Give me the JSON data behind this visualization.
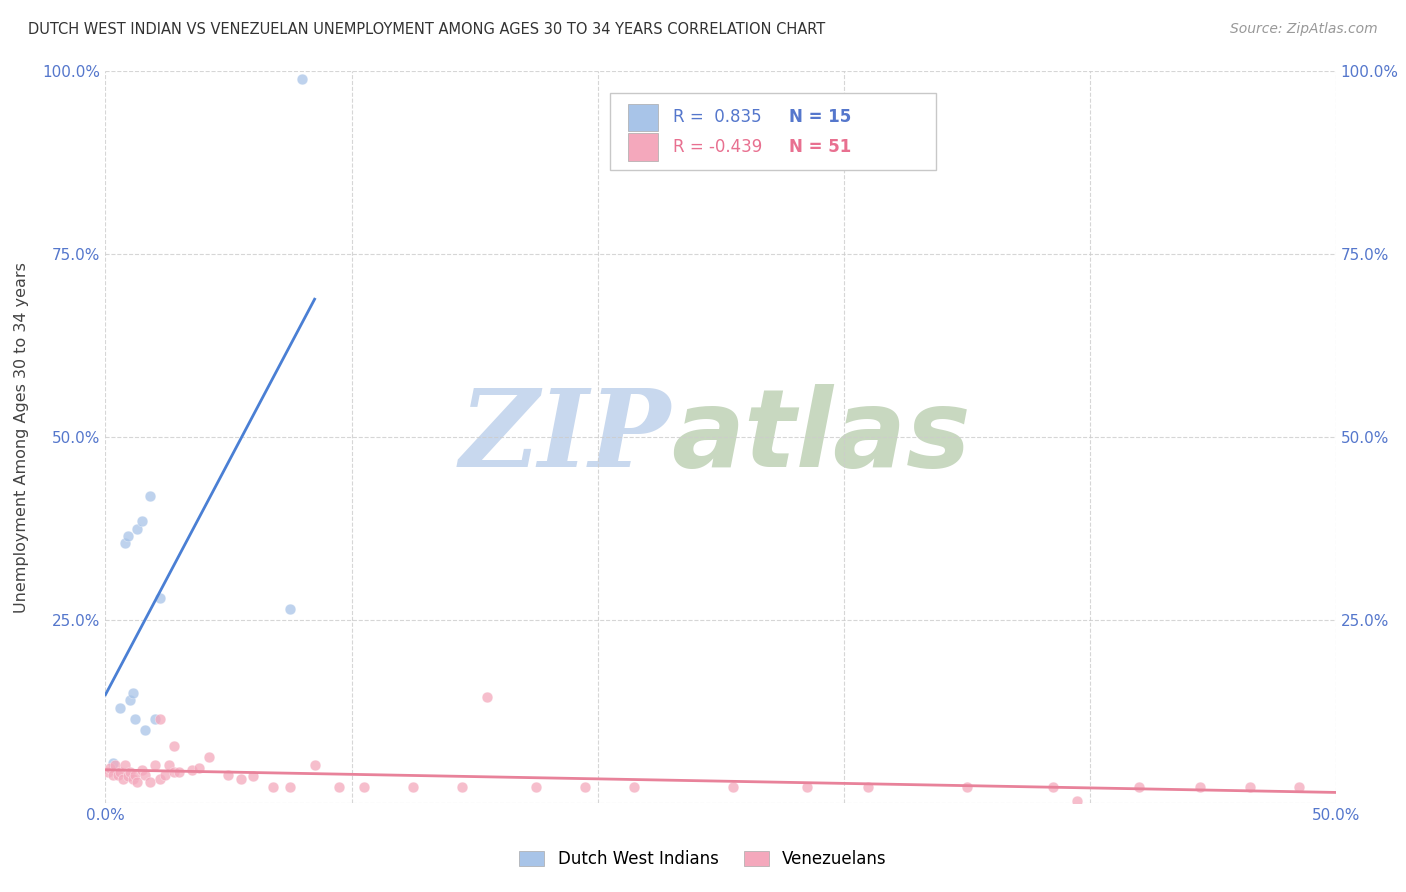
{
  "title": "DUTCH WEST INDIAN VS VENEZUELAN UNEMPLOYMENT AMONG AGES 30 TO 34 YEARS CORRELATION CHART",
  "source": "Source: ZipAtlas.com",
  "ylabel": "Unemployment Among Ages 30 to 34 years",
  "xlim": [
    0.0,
    0.5
  ],
  "ylim": [
    0.0,
    1.0
  ],
  "blue_R": 0.835,
  "blue_N": 15,
  "pink_R": -0.439,
  "pink_N": 51,
  "blue_color": "#a8c4e8",
  "pink_color": "#f4a8bc",
  "blue_line_color": "#4a7fd4",
  "pink_line_color": "#e8829a",
  "watermark_ZIP_color": "#c8d8ee",
  "watermark_atlas_color": "#c8d8c0",
  "legend_label_blue": "Dutch West Indians",
  "legend_label_pink": "Venezuelans",
  "blue_points_x": [
    0.003,
    0.006,
    0.008,
    0.009,
    0.01,
    0.011,
    0.012,
    0.013,
    0.015,
    0.016,
    0.018,
    0.02,
    0.022,
    0.075,
    0.08
  ],
  "blue_points_y": [
    0.055,
    0.13,
    0.355,
    0.365,
    0.14,
    0.15,
    0.115,
    0.375,
    0.385,
    0.1,
    0.42,
    0.115,
    0.28,
    0.265,
    0.99
  ],
  "pink_points_x": [
    0.001,
    0.002,
    0.003,
    0.004,
    0.005,
    0.006,
    0.007,
    0.008,
    0.009,
    0.01,
    0.011,
    0.012,
    0.013,
    0.015,
    0.016,
    0.018,
    0.02,
    0.022,
    0.024,
    0.026,
    0.028,
    0.03,
    0.035,
    0.038,
    0.042,
    0.05,
    0.055,
    0.06,
    0.068,
    0.075,
    0.085,
    0.095,
    0.105,
    0.125,
    0.145,
    0.155,
    0.175,
    0.195,
    0.215,
    0.255,
    0.285,
    0.31,
    0.35,
    0.385,
    0.395,
    0.42,
    0.445,
    0.465,
    0.485,
    0.022,
    0.028
  ],
  "pink_points_y": [
    0.042,
    0.048,
    0.038,
    0.052,
    0.038,
    0.042,
    0.032,
    0.052,
    0.036,
    0.042,
    0.032,
    0.038,
    0.028,
    0.045,
    0.038,
    0.028,
    0.052,
    0.032,
    0.038,
    0.052,
    0.042,
    0.042,
    0.045,
    0.048,
    0.062,
    0.038,
    0.032,
    0.036,
    0.022,
    0.022,
    0.052,
    0.022,
    0.022,
    0.022,
    0.022,
    0.145,
    0.022,
    0.022,
    0.022,
    0.022,
    0.022,
    0.022,
    0.022,
    0.022,
    0.002,
    0.022,
    0.022,
    0.022,
    0.022,
    0.115,
    0.078
  ],
  "xtick_pos": [
    0.0,
    0.1,
    0.2,
    0.3,
    0.4,
    0.5
  ],
  "ytick_pos": [
    0.0,
    0.25,
    0.5,
    0.75,
    1.0
  ],
  "blue_line_x": [
    0.0,
    0.085
  ],
  "pink_line_x": [
    0.0,
    0.5
  ]
}
